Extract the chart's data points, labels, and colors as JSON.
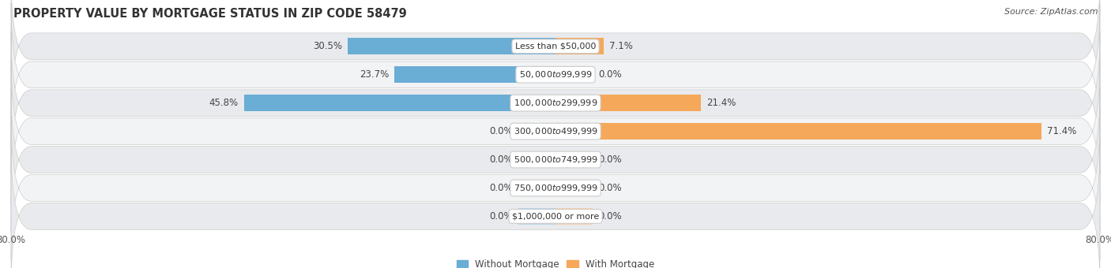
{
  "title": "PROPERTY VALUE BY MORTGAGE STATUS IN ZIP CODE 58479",
  "source": "Source: ZipAtlas.com",
  "categories": [
    "Less than $50,000",
    "$50,000 to $99,999",
    "$100,000 to $299,999",
    "$300,000 to $499,999",
    "$500,000 to $749,999",
    "$750,000 to $999,999",
    "$1,000,000 or more"
  ],
  "without_mortgage": [
    30.5,
    23.7,
    45.8,
    0.0,
    0.0,
    0.0,
    0.0
  ],
  "with_mortgage": [
    7.1,
    0.0,
    21.4,
    71.4,
    0.0,
    0.0,
    0.0
  ],
  "color_without": "#6aadd5",
  "color_without_light": "#b8d4ea",
  "color_with": "#f5a85a",
  "color_with_light": "#f5d0a8",
  "xlim": [
    -80,
    80
  ],
  "xtick_left": -80.0,
  "xtick_right": 80.0,
  "bar_height": 0.58,
  "stub_value": 5.5,
  "row_bg_odd": "#e8eaed",
  "row_bg_even": "#f2f3f5",
  "row_sep_color": "#ffffff",
  "title_fontsize": 10.5,
  "source_fontsize": 8,
  "label_fontsize": 8.5,
  "category_fontsize": 8,
  "legend_fontsize": 8.5,
  "tick_fontsize": 8.5
}
